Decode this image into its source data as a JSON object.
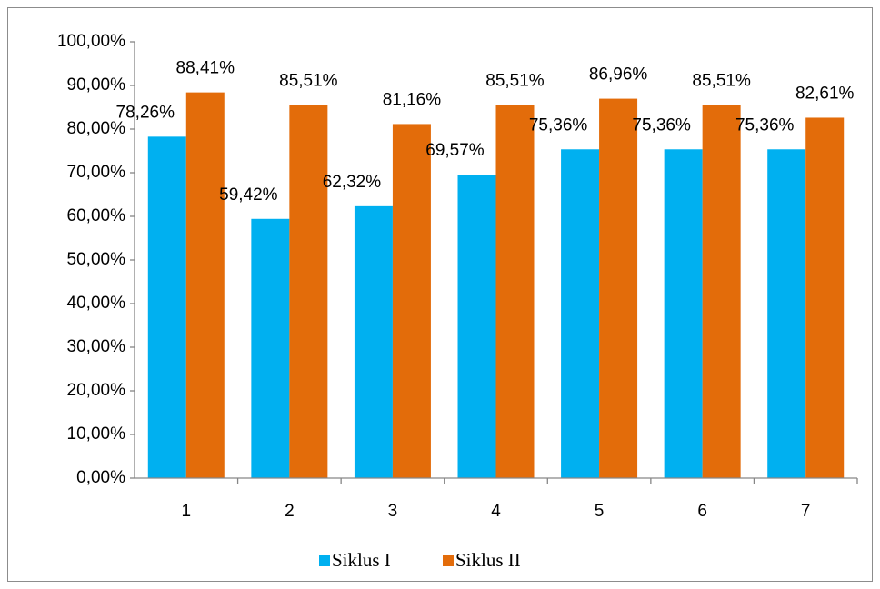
{
  "chart_data": {
    "type": "bar",
    "categories": [
      "1",
      "2",
      "3",
      "4",
      "5",
      "6",
      "7"
    ],
    "series": [
      {
        "name": "Siklus I",
        "color": "#00b0f0",
        "values": [
          78.26,
          59.42,
          62.32,
          69.57,
          75.36,
          75.36,
          75.36
        ],
        "value_labels": [
          "78,26%",
          "59,42%",
          "62,32%",
          "69,57%",
          "75,36%",
          "75,36%",
          "75,36%"
        ]
      },
      {
        "name": "Siklus II",
        "color": "#e36c0a",
        "values": [
          88.41,
          85.51,
          81.16,
          85.51,
          86.96,
          85.51,
          82.61
        ],
        "value_labels": [
          "88,41%",
          "85,51%",
          "81,16%",
          "85,51%",
          "86,96%",
          "85,51%",
          "82,61%"
        ]
      }
    ],
    "ylim": [
      0,
      100
    ],
    "yticks": [
      {
        "value": 0,
        "label": "0,00%"
      },
      {
        "value": 10,
        "label": "10,00%"
      },
      {
        "value": 20,
        "label": "20,00%"
      },
      {
        "value": 30,
        "label": "30,00%"
      },
      {
        "value": 40,
        "label": "40,00%"
      },
      {
        "value": 50,
        "label": "50,00%"
      },
      {
        "value": 60,
        "label": "60,00%"
      },
      {
        "value": 70,
        "label": "70,00%"
      },
      {
        "value": 80,
        "label": "80,00%"
      },
      {
        "value": 90,
        "label": "90,00%"
      },
      {
        "value": 100,
        "label": "100,00%"
      }
    ],
    "grid": false,
    "legend": "bottom"
  }
}
